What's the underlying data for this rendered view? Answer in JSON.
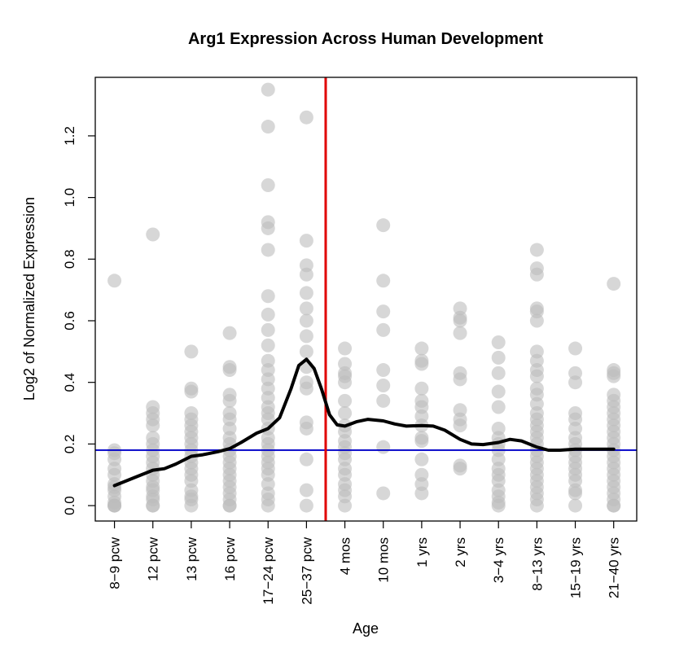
{
  "chart_data": {
    "type": "scatter",
    "title": "Arg1 Expression Across Human Development",
    "xlabel": "Age",
    "ylabel": "Log2 of Normalized Expression",
    "categories": [
      "8−9 pcw",
      "12 pcw",
      "13 pcw",
      "16 pcw",
      "17−24 pcw",
      "25−37 pcw",
      "4 mos",
      "10 mos",
      "1 yrs",
      "2 yrs",
      "3−4 yrs",
      "8−13 yrs",
      "15−19 yrs",
      "21−40 yrs"
    ],
    "yticks": [
      0.0,
      0.2,
      0.4,
      0.6,
      0.8,
      1.0,
      1.2
    ],
    "ytick_labels": [
      "0.0",
      "0.2",
      "0.4",
      "0.6",
      "0.8",
      "1.0",
      "1.2"
    ],
    "xlim": [
      0.5,
      14.6
    ],
    "ylim": [
      -0.05,
      1.39
    ],
    "grid": false,
    "reference_lines": {
      "horizontal_y": 0.18,
      "horizontal_color": "#0000c8",
      "vertical_after_category": "25−37 pcw",
      "vertical_color": "#e00000"
    },
    "points_color": "#bdbdbd",
    "points": [
      [
        0.73,
        0.18,
        0.17,
        0.15,
        0.12,
        0.1,
        0.07,
        0.06,
        0.05,
        0.03,
        0.01,
        0.0,
        0.0,
        0.0
      ],
      [
        0.88,
        0.32,
        0.3,
        0.28,
        0.26,
        0.22,
        0.2,
        0.18,
        0.16,
        0.14,
        0.12,
        0.1,
        0.08,
        0.06,
        0.05,
        0.03,
        0.02,
        0.0,
        0.0
      ],
      [
        0.5,
        0.38,
        0.37,
        0.3,
        0.28,
        0.26,
        0.24,
        0.22,
        0.2,
        0.18,
        0.16,
        0.14,
        0.12,
        0.1,
        0.08,
        0.05,
        0.03,
        0.02,
        0.0
      ],
      [
        0.56,
        0.45,
        0.44,
        0.36,
        0.34,
        0.3,
        0.28,
        0.25,
        0.22,
        0.2,
        0.18,
        0.16,
        0.14,
        0.12,
        0.1,
        0.08,
        0.06,
        0.04,
        0.02,
        0.0,
        0.0
      ],
      [
        1.35,
        1.23,
        1.04,
        0.92,
        0.9,
        0.83,
        0.68,
        0.62,
        0.57,
        0.52,
        0.47,
        0.44,
        0.41,
        0.38,
        0.35,
        0.32,
        0.3,
        0.28,
        0.25,
        0.22,
        0.2,
        0.18,
        0.16,
        0.14,
        0.12,
        0.1,
        0.07,
        0.04,
        0.02,
        0.0
      ],
      [
        1.26,
        0.86,
        0.78,
        0.75,
        0.69,
        0.64,
        0.6,
        0.55,
        0.5,
        0.45,
        0.4,
        0.38,
        0.27,
        0.25,
        0.15,
        0.05,
        0.0
      ],
      [
        0.51,
        0.46,
        0.43,
        0.42,
        0.4,
        0.34,
        0.3,
        0.26,
        0.24,
        0.21,
        0.19,
        0.17,
        0.15,
        0.12,
        0.1,
        0.07,
        0.05,
        0.03,
        0.0
      ],
      [
        0.91,
        0.73,
        0.63,
        0.57,
        0.44,
        0.39,
        0.34,
        0.19,
        0.04
      ],
      [
        0.51,
        0.47,
        0.46,
        0.38,
        0.34,
        0.32,
        0.29,
        0.26,
        0.22,
        0.21,
        0.15,
        0.1,
        0.07,
        0.04
      ],
      [
        0.64,
        0.61,
        0.6,
        0.56,
        0.43,
        0.41,
        0.31,
        0.28,
        0.26,
        0.13,
        0.12
      ],
      [
        0.53,
        0.48,
        0.43,
        0.37,
        0.32,
        0.25,
        0.22,
        0.2,
        0.18,
        0.15,
        0.12,
        0.1,
        0.08,
        0.05,
        0.03,
        0.01,
        0.0
      ],
      [
        0.83,
        0.77,
        0.75,
        0.64,
        0.63,
        0.6,
        0.5,
        0.47,
        0.44,
        0.42,
        0.38,
        0.36,
        0.33,
        0.3,
        0.28,
        0.26,
        0.24,
        0.22,
        0.2,
        0.18,
        0.16,
        0.14,
        0.12,
        0.1,
        0.08,
        0.06,
        0.04,
        0.02,
        0.0
      ],
      [
        0.51,
        0.43,
        0.4,
        0.3,
        0.28,
        0.25,
        0.22,
        0.2,
        0.18,
        0.16,
        0.14,
        0.12,
        0.1,
        0.08,
        0.05,
        0.04,
        0.0
      ],
      [
        0.72,
        0.44,
        0.43,
        0.42,
        0.36,
        0.34,
        0.32,
        0.3,
        0.28,
        0.26,
        0.24,
        0.22,
        0.2,
        0.18,
        0.16,
        0.14,
        0.12,
        0.1,
        0.08,
        0.06,
        0.04,
        0.02,
        0.0,
        0.0
      ]
    ],
    "trend_line": {
      "color": "#000000",
      "x": [
        1.0,
        1.5,
        2.0,
        2.3,
        2.6,
        3.0,
        3.3,
        3.7,
        4.0,
        4.3,
        4.7,
        5.0,
        5.3,
        5.6,
        5.8,
        6.0,
        6.2,
        6.4,
        6.6,
        6.8,
        7.0,
        7.3,
        7.6,
        8.0,
        8.3,
        8.6,
        9.0,
        9.3,
        9.6,
        10.0,
        10.3,
        10.6,
        11.0,
        11.3,
        11.6,
        12.0,
        12.3,
        12.6,
        13.0,
        13.3,
        13.6,
        14.0
      ],
      "y": [
        0.065,
        0.09,
        0.115,
        0.12,
        0.135,
        0.16,
        0.165,
        0.175,
        0.185,
        0.205,
        0.235,
        0.25,
        0.285,
        0.38,
        0.455,
        0.475,
        0.445,
        0.375,
        0.295,
        0.262,
        0.258,
        0.272,
        0.28,
        0.275,
        0.265,
        0.258,
        0.26,
        0.258,
        0.245,
        0.215,
        0.2,
        0.198,
        0.205,
        0.215,
        0.21,
        0.19,
        0.18,
        0.18,
        0.183,
        0.183,
        0.183,
        0.183
      ]
    }
  }
}
